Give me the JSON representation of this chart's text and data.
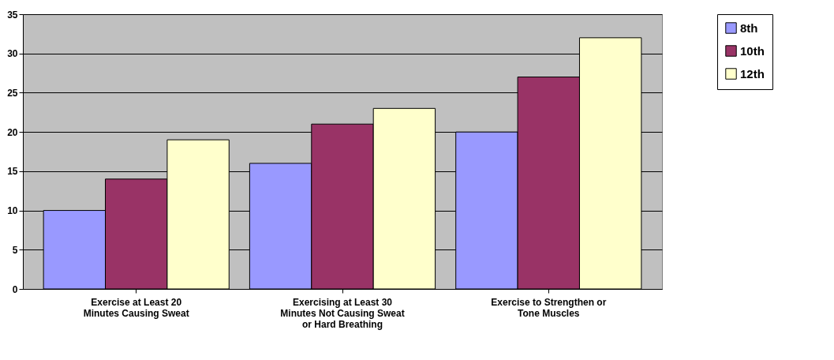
{
  "chart_data": {
    "type": "bar",
    "categories": [
      "Exercise at Least 20 Minutes Causing Sweat",
      "Exercising at Least 30 Minutes Not Causing Sweat or Hard Breathing",
      "Exercise to Strengthen or Tone Muscles"
    ],
    "series": [
      {
        "name": "8th",
        "color": "#9999ff",
        "values": [
          10,
          16,
          20
        ]
      },
      {
        "name": "10th",
        "color": "#993366",
        "values": [
          14,
          21,
          27
        ]
      },
      {
        "name": "12th",
        "color": "#ffffcc",
        "values": [
          19,
          23,
          32
        ]
      }
    ],
    "ylim": [
      0,
      35
    ],
    "yticks": [
      0,
      5,
      10,
      15,
      20,
      25,
      30,
      35
    ],
    "grid": "y",
    "legend": "right"
  }
}
